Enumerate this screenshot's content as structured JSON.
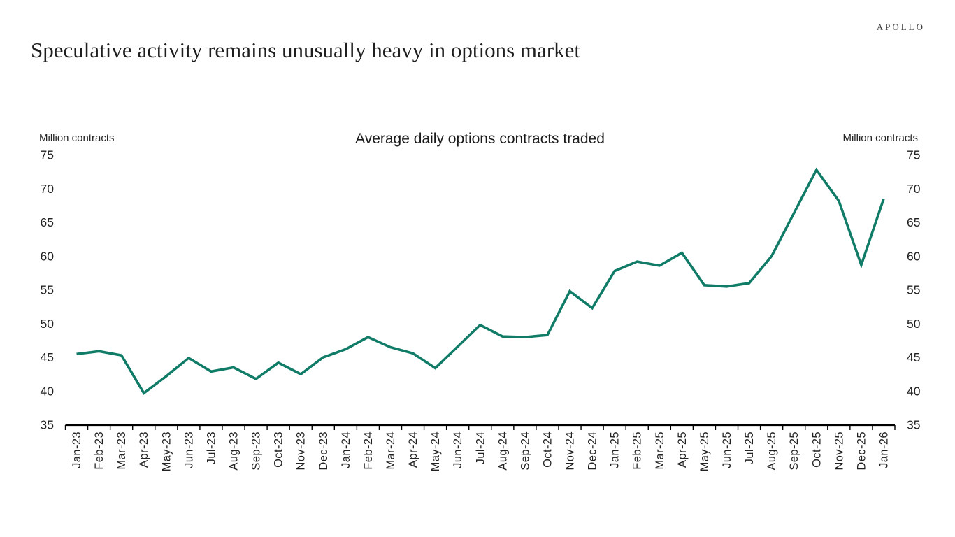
{
  "header": {
    "logo": "APOLLO",
    "title": "Speculative activity remains unusually heavy in options market"
  },
  "chart_data": {
    "type": "line",
    "title": "Average daily options contracts traded",
    "left_unit_label": "Million contracts",
    "right_unit_label": "Million contracts",
    "categories": [
      "Jan-23",
      "Feb-23",
      "Mar-23",
      "Apr-23",
      "May-23",
      "Jun-23",
      "Jul-23",
      "Aug-23",
      "Sep-23",
      "Oct-23",
      "Nov-23",
      "Dec-23",
      "Jan-24",
      "Feb-24",
      "Mar-24",
      "Apr-24",
      "May-24",
      "Jun-24",
      "Jul-24",
      "Aug-24",
      "Sep-24",
      "Oct-24",
      "Nov-24",
      "Dec-24",
      "Jan-25",
      "Feb-25",
      "Mar-25",
      "Apr-25",
      "May-25",
      "Jun-25",
      "Jul-25",
      "Aug-25",
      "Sep-25",
      "Oct-25",
      "Nov-25",
      "Dec-25",
      "Jan-26"
    ],
    "series": [
      {
        "name": "Average daily options contracts traded",
        "values": [
          45.5,
          45.9,
          45.3,
          39.7,
          42.2,
          44.9,
          42.9,
          43.5,
          41.8,
          44.2,
          42.5,
          45.0,
          46.2,
          48.0,
          46.5,
          45.6,
          43.4,
          46.6,
          49.8,
          48.1,
          48.0,
          48.3,
          54.8,
          52.3,
          57.8,
          59.2,
          58.6,
          60.5,
          55.7,
          55.5,
          56.0,
          60.0,
          66.4,
          72.8,
          68.2,
          58.7,
          68.5
        ]
      }
    ],
    "ylim": [
      35,
      75
    ],
    "yticks": [
      35,
      40,
      45,
      50,
      55,
      60,
      65,
      70,
      75
    ],
    "grid": false,
    "legend": "none",
    "line_color": "#107c67",
    "axis_color": "#000000",
    "text_color": "#222222"
  }
}
